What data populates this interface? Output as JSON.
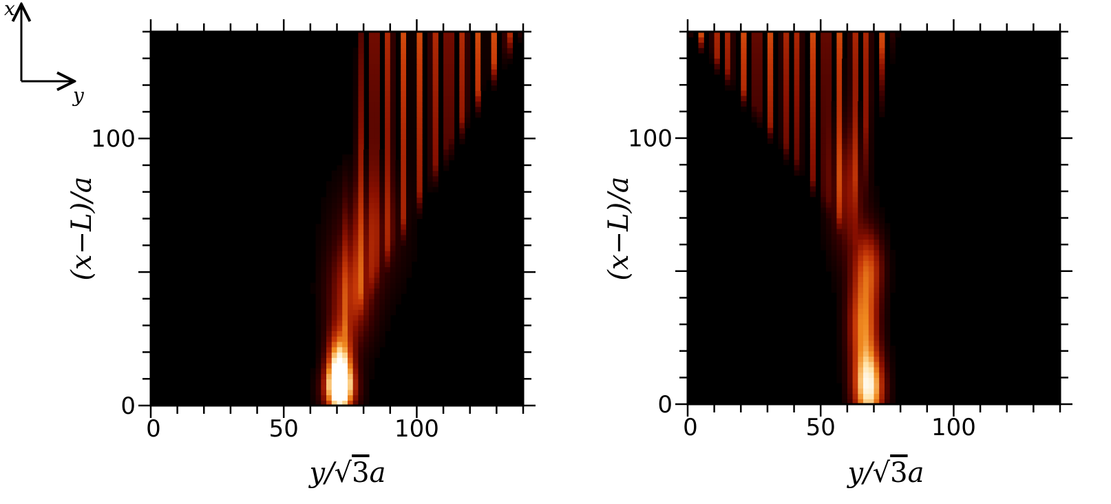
{
  "compass": {
    "x_label": "x",
    "y_label": "y"
  },
  "chart_data": [
    {
      "type": "heatmap",
      "xlabel_parts": [
        "y/",
        "√",
        "3",
        "a"
      ],
      "ylabel": "(x−L)/a",
      "xlim": [
        0,
        140
      ],
      "ylim": [
        0,
        140
      ],
      "xticks": [
        0,
        50,
        100
      ],
      "yticks": [
        0,
        100
      ],
      "colormap": [
        "#000000",
        "#3a0000",
        "#8a1000",
        "#c83a08",
        "#f08a20",
        "#ffe0a0",
        "#ffffff"
      ],
      "blobs": [
        {
          "y": 71,
          "x": 12,
          "sy": 3.2,
          "sx": 10,
          "amp": 1.0
        },
        {
          "y": 71,
          "x": 6,
          "sy": 4.5,
          "sx": 6,
          "amp": 0.55
        },
        {
          "y": 75,
          "x": 40,
          "sy": 6,
          "sx": 14,
          "amp": 0.38
        },
        {
          "y": 82,
          "x": 65,
          "sy": 9,
          "sx": 16,
          "amp": 0.22
        }
      ],
      "fringes": {
        "x_start": 20,
        "x_end": 140,
        "y_from": 70,
        "y_to_top": [
          78,
          140
        ],
        "period": 5.6,
        "amp": 0.55
      }
    },
    {
      "type": "heatmap",
      "xlabel_parts": [
        "y/",
        "√",
        "3",
        "a"
      ],
      "ylabel": "(x−L)/a",
      "xlim": [
        0,
        140
      ],
      "ylim": [
        0,
        140
      ],
      "xticks": [
        0,
        50,
        100
      ],
      "yticks": [
        0,
        100
      ],
      "colormap": [
        "#000000",
        "#3a0000",
        "#8a1000",
        "#c83a08",
        "#f08a20",
        "#ffe0a0",
        "#ffffff"
      ],
      "blobs": [
        {
          "y": 68,
          "x": 6,
          "sy": 4,
          "sx": 10,
          "amp": 0.9
        },
        {
          "y": 66,
          "x": 30,
          "sy": 4,
          "sx": 12,
          "amp": 0.6
        },
        {
          "y": 68,
          "x": 52,
          "sy": 4,
          "sx": 10,
          "amp": 0.45
        },
        {
          "y": 60,
          "x": 80,
          "sy": 5,
          "sx": 18,
          "amp": 0.3
        }
      ],
      "fringes": {
        "x_start": 60,
        "x_end": 140,
        "y_from": 62,
        "y_to_top": [
          0,
          78
        ],
        "period": 5.2,
        "amp": 0.55
      }
    }
  ]
}
